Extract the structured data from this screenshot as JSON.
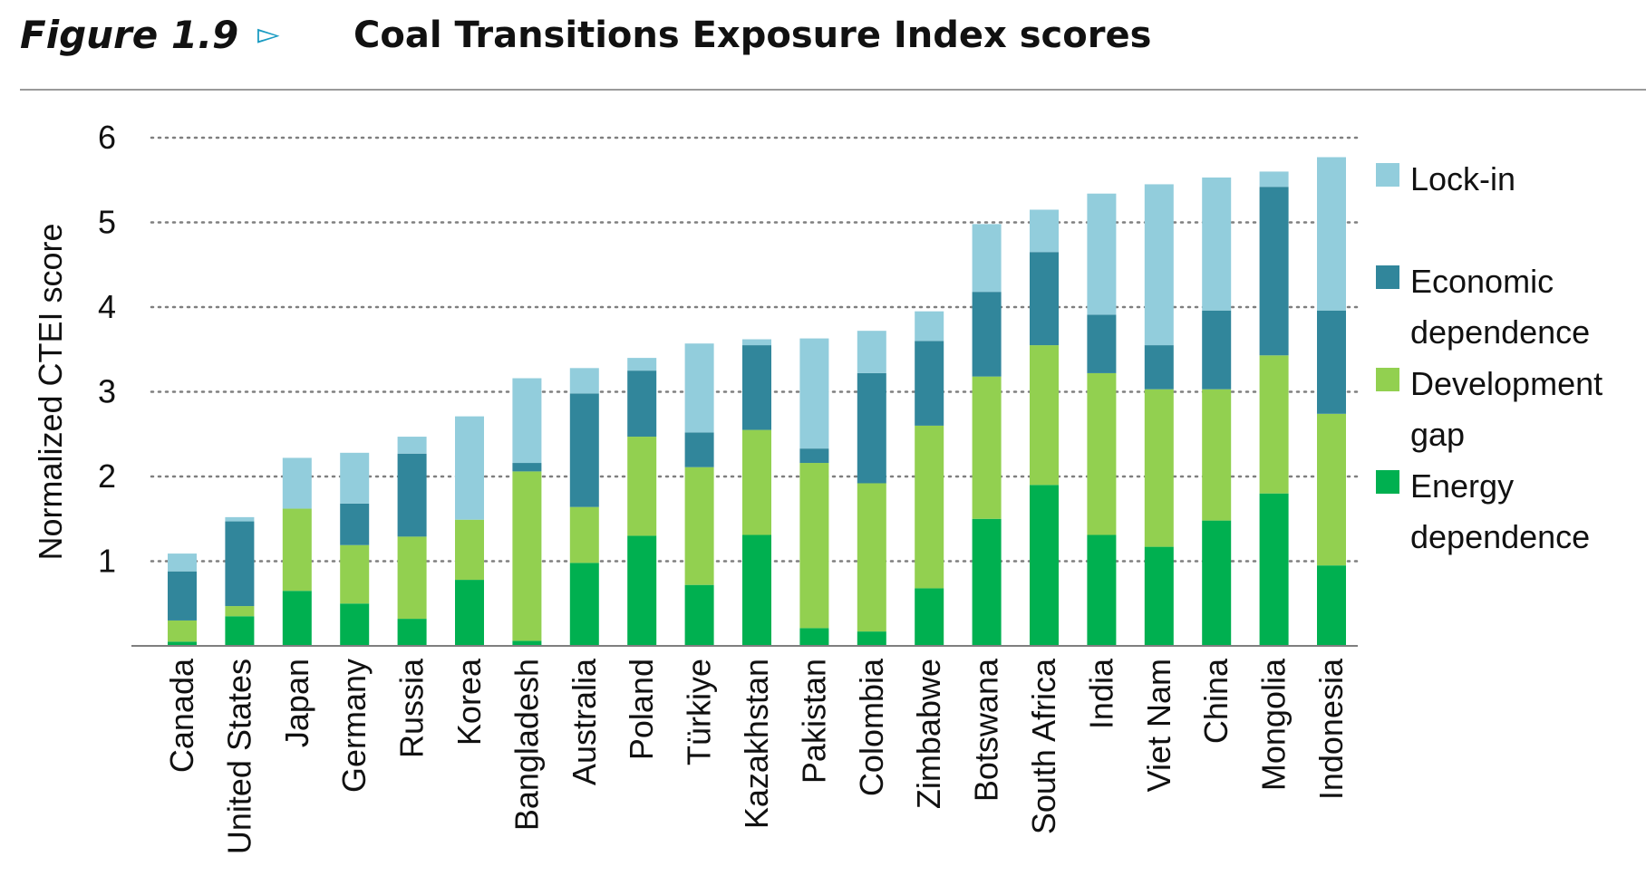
{
  "header": {
    "figure_label": "Figure 1.9",
    "arrow": "▻",
    "title": "Coal Transitions Exposure Index scores"
  },
  "colors": {
    "lock_in": "#92cddc",
    "economic_dependence": "#31869b",
    "development_gap": "#92d050",
    "energy_dependence": "#00b050",
    "grid": "#7f7f7f",
    "axis": "#7f7f7f"
  },
  "chart_data": {
    "type": "bar",
    "stacked": true,
    "title": "Coal Transitions Exposure Index scores",
    "xlabel": "",
    "ylabel": "Normalized CTEI score",
    "ylim": [
      0,
      6
    ],
    "yticks": [
      1,
      2,
      3,
      4,
      5,
      6
    ],
    "grid": true,
    "legend_position": "right",
    "categories": [
      "Canada",
      "United States",
      "Japan",
      "Germany",
      "Russia",
      "Korea",
      "Bangladesh",
      "Australia",
      "Poland",
      "Türkiye",
      "Kazakhstan",
      "Pakistan",
      "Colombia",
      "Zimbabwe",
      "Botswana",
      "South Africa",
      "India",
      "Viet Nam",
      "China",
      "Mongolia",
      "Indonesia"
    ],
    "series": [
      {
        "name": "Energy dependence",
        "color_key": "energy_dependence",
        "values": [
          0.05,
          0.35,
          0.65,
          0.5,
          0.32,
          0.78,
          0.06,
          0.98,
          1.3,
          0.72,
          1.31,
          0.21,
          0.17,
          0.68,
          1.5,
          1.9,
          1.31,
          1.17,
          1.48,
          1.8,
          0.95
        ]
      },
      {
        "name": "Development gap",
        "color_key": "development_gap",
        "values": [
          0.25,
          0.12,
          0.97,
          0.69,
          0.97,
          0.71,
          2.0,
          0.66,
          1.17,
          1.39,
          1.24,
          1.95,
          1.75,
          1.92,
          1.68,
          1.65,
          1.91,
          1.86,
          1.55,
          1.63,
          1.79
        ]
      },
      {
        "name": "Economic dependence",
        "color_key": "economic_dependence",
        "values": [
          0.58,
          1.0,
          0.0,
          0.49,
          0.98,
          0.0,
          0.1,
          1.34,
          0.78,
          0.41,
          1.0,
          0.17,
          1.3,
          1.0,
          1.0,
          1.1,
          0.69,
          0.52,
          0.93,
          1.99,
          1.22
        ]
      },
      {
        "name": "Lock-in",
        "color_key": "lock_in",
        "values": [
          0.21,
          0.05,
          0.6,
          0.6,
          0.2,
          1.22,
          1.0,
          0.3,
          0.15,
          1.05,
          0.07,
          1.3,
          0.5,
          0.35,
          0.8,
          0.5,
          1.43,
          1.9,
          1.57,
          0.18,
          1.81
        ]
      }
    ]
  },
  "legend": {
    "items": [
      {
        "label_lines": [
          "Lock-in"
        ],
        "color_key": "lock_in"
      },
      {
        "label_lines": [
          "Economic",
          "dependence"
        ],
        "color_key": "economic_dependence"
      },
      {
        "label_lines": [
          "Development",
          "gap"
        ],
        "color_key": "development_gap"
      },
      {
        "label_lines": [
          "Energy",
          "dependence"
        ],
        "color_key": "energy_dependence"
      }
    ]
  }
}
